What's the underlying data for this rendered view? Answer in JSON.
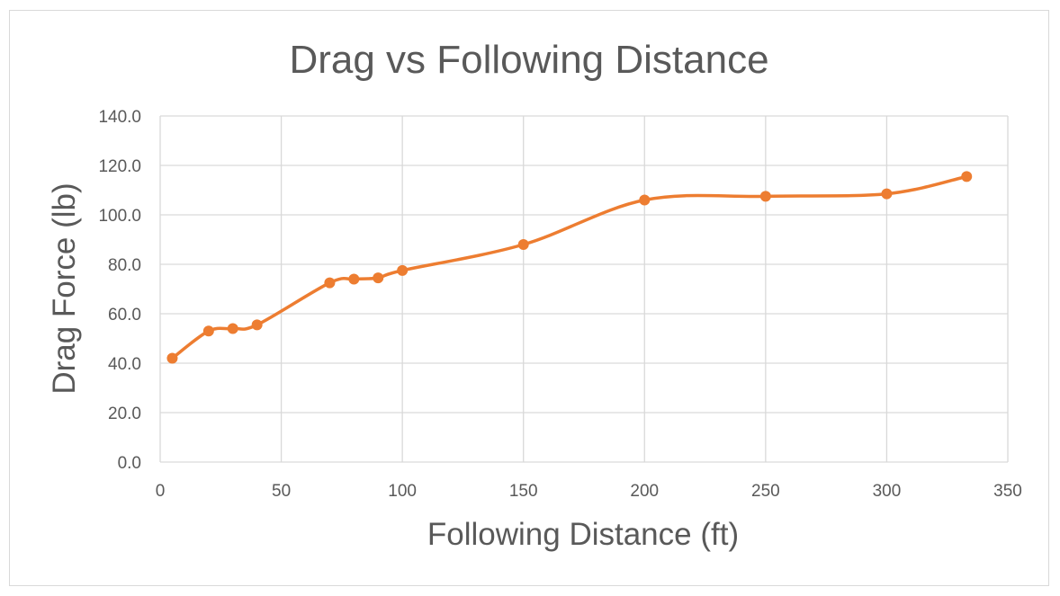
{
  "chart_data": {
    "type": "scatter",
    "title": "Drag vs Following Distance",
    "xlabel": "Following Distance (ft)",
    "ylabel": "Drag Force (lb)",
    "xlim": [
      0,
      350
    ],
    "ylim": [
      0,
      140
    ],
    "x_ticks": [
      "0",
      "50",
      "100",
      "150",
      "200",
      "250",
      "300",
      "350"
    ],
    "y_ticks": [
      "0.0",
      "20.0",
      "40.0",
      "60.0",
      "80.0",
      "100.0",
      "120.0",
      "140.0"
    ],
    "grid": true,
    "legend": "none",
    "line_style": "smoothed",
    "series": [
      {
        "color": "#ED7D31",
        "points": [
          {
            "x": 5,
            "y": 42.0
          },
          {
            "x": 20,
            "y": 53.0
          },
          {
            "x": 30,
            "y": 54.0
          },
          {
            "x": 40,
            "y": 55.5
          },
          {
            "x": 70,
            "y": 72.5
          },
          {
            "x": 80,
            "y": 74.0
          },
          {
            "x": 90,
            "y": 74.5
          },
          {
            "x": 100,
            "y": 77.5
          },
          {
            "x": 150,
            "y": 88.0
          },
          {
            "x": 200,
            "y": 106.0
          },
          {
            "x": 250,
            "y": 107.5
          },
          {
            "x": 300,
            "y": 108.5
          },
          {
            "x": 333,
            "y": 115.5
          }
        ]
      }
    ]
  }
}
